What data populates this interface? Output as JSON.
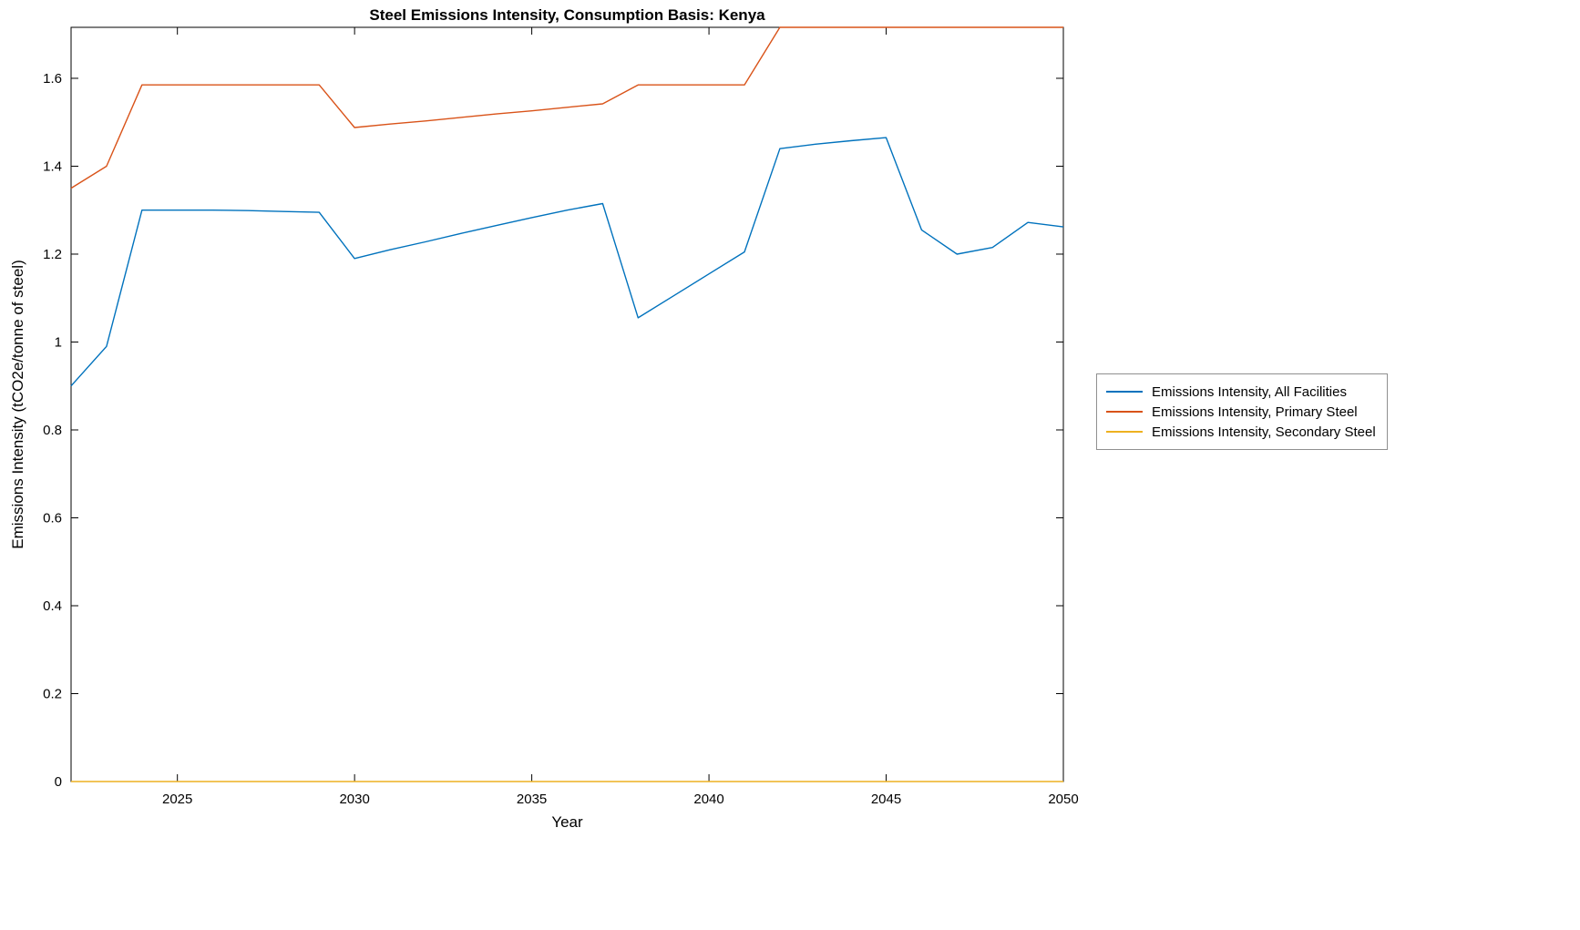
{
  "chart_data": {
    "type": "line",
    "title": "Steel Emissions Intensity, Consumption Basis: Kenya",
    "xlabel": "Year",
    "ylabel": "Emissions Intensity (tCO2e/tonne of steel)",
    "xlim": [
      2022,
      2050
    ],
    "ylim": [
      0,
      1.716
    ],
    "x_ticks": [
      2025,
      2030,
      2035,
      2040,
      2045,
      2050
    ],
    "y_ticks": [
      0,
      0.2,
      0.4,
      0.6,
      0.8,
      1,
      1.2,
      1.4,
      1.6
    ],
    "grid": false,
    "legend_position": "right-outside",
    "x": [
      2022,
      2023,
      2024,
      2025,
      2026,
      2027,
      2028,
      2029,
      2030,
      2031,
      2032,
      2033,
      2034,
      2035,
      2036,
      2037,
      2038,
      2039,
      2040,
      2041,
      2042,
      2043,
      2044,
      2045,
      2046,
      2047,
      2048,
      2049,
      2050
    ],
    "series": [
      {
        "name": "Emissions Intensity, All Facilities",
        "color": "#0072BD",
        "values": [
          0.9,
          0.99,
          1.3,
          1.3,
          1.3,
          1.299,
          1.297,
          1.295,
          1.19,
          1.21,
          1.228,
          1.247,
          1.265,
          1.283,
          1.3,
          1.315,
          1.055,
          1.105,
          1.155,
          1.205,
          1.44,
          1.45,
          1.458,
          1.465,
          1.255,
          1.2,
          1.215,
          1.272,
          1.262
        ]
      },
      {
        "name": "Emissions Intensity, Primary Steel",
        "color": "#D95319",
        "values": [
          1.35,
          1.4,
          1.585,
          1.585,
          1.585,
          1.585,
          1.585,
          1.585,
          1.488,
          1.496,
          1.503,
          1.511,
          1.519,
          1.526,
          1.534,
          1.542,
          1.585,
          1.585,
          1.585,
          1.585,
          1.716,
          1.716,
          1.716,
          1.716,
          1.716,
          1.716,
          1.716,
          1.716,
          1.716
        ]
      },
      {
        "name": "Emissions Intensity, Secondary Steel",
        "color": "#EDB120",
        "values": [
          0,
          0,
          0,
          0,
          0,
          0,
          0,
          0,
          0,
          0,
          0,
          0,
          0,
          0,
          0,
          0,
          0,
          0,
          0,
          0,
          0,
          0,
          0,
          0,
          0,
          0,
          0,
          0,
          0
        ]
      }
    ]
  }
}
